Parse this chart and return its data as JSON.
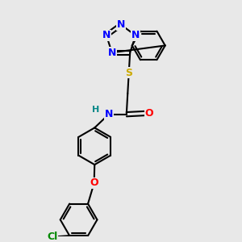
{
  "background_color": "#e8e8e8",
  "atom_colors": {
    "N": "#0000ff",
    "O": "#ff0000",
    "S": "#ccaa00",
    "Cl": "#008800",
    "H": "#008888",
    "C": "#000000"
  },
  "bond_color": "#000000",
  "bond_width": 1.5,
  "font_size_atom": 9,
  "font_size_h": 8
}
